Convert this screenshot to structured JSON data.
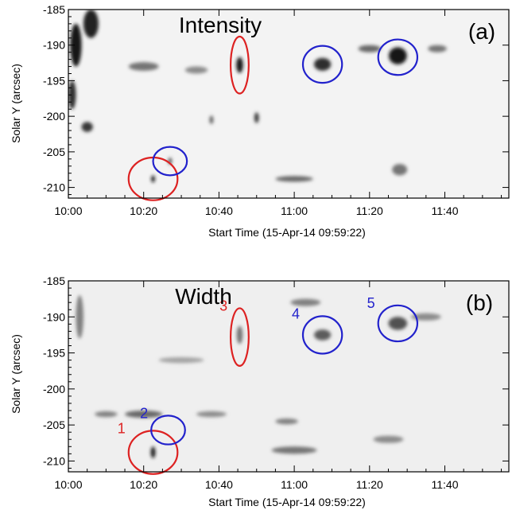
{
  "chart_data": [
    {
      "type": "heatmap",
      "title": "Intensity",
      "panel_label": "(a)",
      "xlabel": "Start Time (15-Apr-14 09:59:22)",
      "ylabel": "Solar Y (arcsec)",
      "x_unit": "minutes after 10:00",
      "xlim": [
        0,
        117
      ],
      "ylim": [
        -211.5,
        -185
      ],
      "x_ticks": [
        0,
        20,
        40,
        60,
        80,
        100
      ],
      "x_tick_labels": [
        "10:00",
        "10:20",
        "10:40",
        "11:00",
        "11:20",
        "11:40"
      ],
      "y_ticks": [
        -185,
        -190,
        -195,
        -200,
        -205,
        -210
      ],
      "y_tick_labels": [
        "-185",
        "-190",
        "-195",
        "-200",
        "-205",
        "-210"
      ],
      "colormap": "inverted grayscale",
      "ellipses": [
        {
          "color": "#dd2222",
          "label": "",
          "cx": 22.5,
          "cy": -208.8,
          "rx": 6.5,
          "ry": 3.0
        },
        {
          "color": "#2222cc",
          "label": "",
          "cx": 27,
          "cy": -206.3,
          "rx": 4.5,
          "ry": 2.0
        },
        {
          "color": "#dd2222",
          "label": "",
          "cx": 45.5,
          "cy": -192.8,
          "rx": 2.4,
          "ry": 4.0
        },
        {
          "color": "#2222cc",
          "label": "",
          "cx": 67.5,
          "cy": -192.7,
          "rx": 5.2,
          "ry": 2.6
        },
        {
          "color": "#2222cc",
          "label": "",
          "cx": 87.5,
          "cy": -191.7,
          "rx": 5.2,
          "ry": 2.5
        }
      ],
      "dark_features": [
        {
          "x": 2,
          "y": -190,
          "w": 3,
          "h": 6,
          "v": 0.95
        },
        {
          "x": 6,
          "y": -187,
          "w": 4,
          "h": 4,
          "v": 0.9
        },
        {
          "x": 1,
          "y": -197,
          "w": 2,
          "h": 4,
          "v": 0.85
        },
        {
          "x": 5,
          "y": -201.5,
          "w": 3,
          "h": 1.4,
          "v": 0.8
        },
        {
          "x": 20,
          "y": -193,
          "w": 8,
          "h": 1.2,
          "v": 0.55
        },
        {
          "x": 45.5,
          "y": -192.8,
          "w": 1.8,
          "h": 2.2,
          "v": 0.95
        },
        {
          "x": 67.5,
          "y": -192.7,
          "w": 4.5,
          "h": 1.8,
          "v": 0.85
        },
        {
          "x": 87.5,
          "y": -191.5,
          "w": 4.8,
          "h": 2.4,
          "v": 0.95
        },
        {
          "x": 22.5,
          "y": -208.8,
          "w": 1,
          "h": 1,
          "v": 0.95
        },
        {
          "x": 27,
          "y": -206.3,
          "w": 1,
          "h": 1,
          "v": 0.7
        },
        {
          "x": 50,
          "y": -200.2,
          "w": 1.2,
          "h": 1.5,
          "v": 0.8
        },
        {
          "x": 38,
          "y": -200.5,
          "w": 1,
          "h": 1.2,
          "v": 0.65
        },
        {
          "x": 80,
          "y": -190.5,
          "w": 6,
          "h": 1,
          "v": 0.6
        },
        {
          "x": 98,
          "y": -190.5,
          "w": 5,
          "h": 1,
          "v": 0.55
        },
        {
          "x": 60,
          "y": -208.8,
          "w": 10,
          "h": 0.8,
          "v": 0.6
        },
        {
          "x": 88,
          "y": -207.5,
          "w": 4,
          "h": 1.6,
          "v": 0.55
        },
        {
          "x": 34,
          "y": -193.5,
          "w": 6,
          "h": 1,
          "v": 0.45
        }
      ]
    },
    {
      "type": "heatmap",
      "title": "Width",
      "panel_label": "(b)",
      "xlabel": "Start Time (15-Apr-14 09:59:22)",
      "ylabel": "Solar Y (arcsec)",
      "x_unit": "minutes after 10:00",
      "xlim": [
        0,
        117
      ],
      "ylim": [
        -211.5,
        -185
      ],
      "x_ticks": [
        0,
        20,
        40,
        60,
        80,
        100
      ],
      "x_tick_labels": [
        "10:00",
        "10:20",
        "10:40",
        "11:00",
        "11:20",
        "11:40"
      ],
      "y_ticks": [
        -185,
        -190,
        -195,
        -200,
        -205,
        -210
      ],
      "y_tick_labels": [
        "-185",
        "-190",
        "-195",
        "-200",
        "-205",
        "-210"
      ],
      "colormap": "inverted grayscale",
      "ellipses": [
        {
          "color": "#dd2222",
          "label": "1",
          "cx": 22.5,
          "cy": -208.8,
          "rx": 6.5,
          "ry": 3.0
        },
        {
          "color": "#2222cc",
          "label": "2",
          "cx": 26.5,
          "cy": -205.7,
          "rx": 4.5,
          "ry": 2.0
        },
        {
          "color": "#dd2222",
          "label": "3",
          "cx": 45.5,
          "cy": -192.8,
          "rx": 2.4,
          "ry": 4.0
        },
        {
          "color": "#2222cc",
          "label": "4",
          "cx": 67.5,
          "cy": -192.5,
          "rx": 5.2,
          "ry": 2.6
        },
        {
          "color": "#2222cc",
          "label": "5",
          "cx": 87.5,
          "cy": -190.9,
          "rx": 5.2,
          "ry": 2.5
        }
      ],
      "dark_features": [
        {
          "x": 22.5,
          "y": -208.8,
          "w": 1.2,
          "h": 1.6,
          "v": 0.95
        },
        {
          "x": 20,
          "y": -203.5,
          "w": 10,
          "h": 1,
          "v": 0.6
        },
        {
          "x": 10,
          "y": -203.5,
          "w": 6,
          "h": 0.8,
          "v": 0.5
        },
        {
          "x": 45.5,
          "y": -192.5,
          "w": 1.6,
          "h": 2.5,
          "v": 0.55
        },
        {
          "x": 67.5,
          "y": -192.5,
          "w": 4.5,
          "h": 1.5,
          "v": 0.65
        },
        {
          "x": 87.5,
          "y": -190.9,
          "w": 5,
          "h": 1.8,
          "v": 0.7
        },
        {
          "x": 63,
          "y": -188,
          "w": 8,
          "h": 1,
          "v": 0.5
        },
        {
          "x": 95,
          "y": -190,
          "w": 8,
          "h": 1,
          "v": 0.45
        },
        {
          "x": 60,
          "y": -208.5,
          "w": 12,
          "h": 1,
          "v": 0.55
        },
        {
          "x": 58,
          "y": -204.5,
          "w": 6,
          "h": 0.8,
          "v": 0.5
        },
        {
          "x": 85,
          "y": -207,
          "w": 8,
          "h": 1,
          "v": 0.45
        },
        {
          "x": 3,
          "y": -190,
          "w": 2,
          "h": 6,
          "v": 0.5
        },
        {
          "x": 38,
          "y": -203.5,
          "w": 8,
          "h": 0.8,
          "v": 0.45
        },
        {
          "x": 30,
          "y": -196,
          "w": 12,
          "h": 0.8,
          "v": 0.35
        }
      ]
    }
  ]
}
